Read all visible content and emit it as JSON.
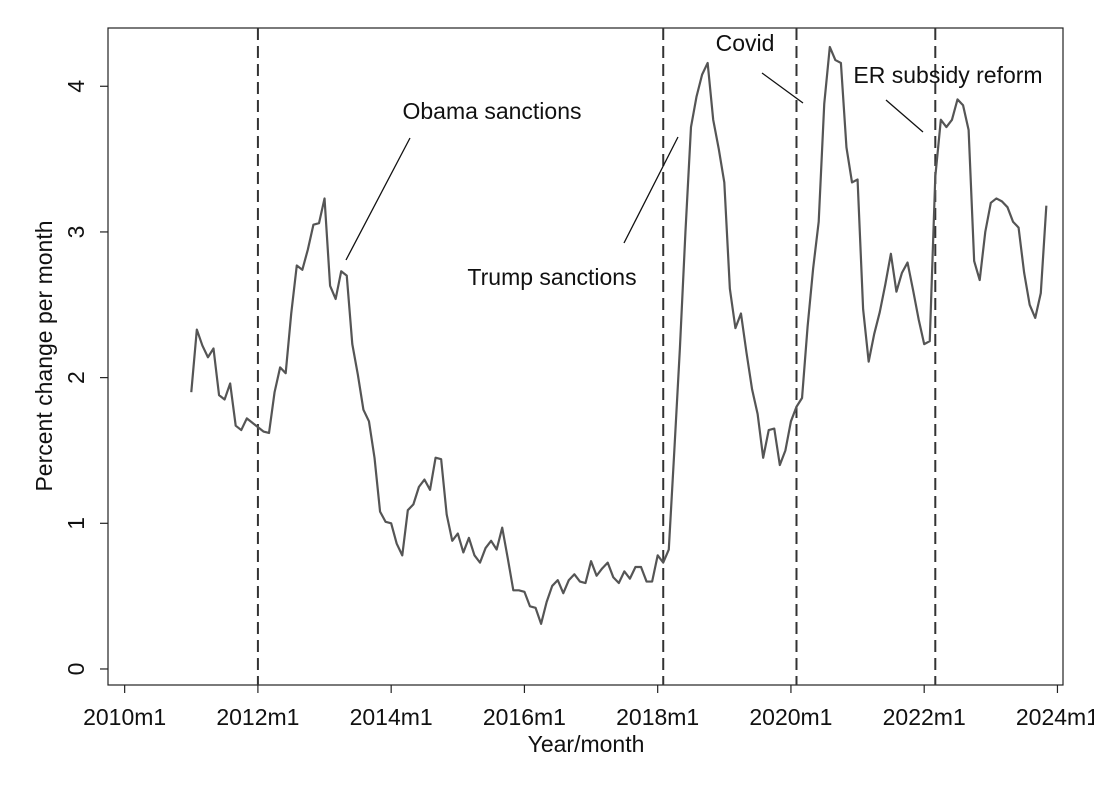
{
  "chart_data": {
    "type": "line",
    "xlabel": "Year/month",
    "ylabel": "Percent change per month",
    "x": [
      612,
      613,
      614,
      615,
      616,
      617,
      618,
      619,
      620,
      621,
      622,
      623,
      624,
      625,
      626,
      627,
      628,
      629,
      630,
      631,
      632,
      633,
      634,
      635,
      636,
      637,
      638,
      639,
      640,
      641,
      642,
      643,
      644,
      645,
      646,
      647,
      648,
      649,
      650,
      651,
      652,
      653,
      654,
      655,
      656,
      657,
      658,
      659,
      660,
      661,
      662,
      663,
      664,
      665,
      666,
      667,
      668,
      669,
      670,
      671,
      672,
      673,
      674,
      675,
      676,
      677,
      678,
      679,
      680,
      681,
      682,
      683,
      684,
      685,
      686,
      687,
      688,
      689,
      690,
      691,
      692,
      693,
      694,
      695,
      696,
      697,
      698,
      699,
      700,
      701,
      702,
      703,
      704,
      705,
      706,
      707,
      708,
      709,
      710,
      711,
      712,
      713,
      714,
      715,
      716,
      717,
      718,
      719,
      720,
      721,
      722,
      723,
      724,
      725,
      726,
      727,
      728,
      729,
      730,
      731,
      732,
      733,
      734,
      735,
      736,
      737,
      738,
      739,
      740,
      741,
      742,
      743,
      744,
      745,
      746,
      747,
      748,
      749,
      750,
      751,
      752,
      753,
      754,
      755,
      756,
      757,
      758,
      759,
      760,
      761,
      762,
      763,
      764,
      765,
      766
    ],
    "series": [
      {
        "color": "#555555",
        "values": [
          1.9,
          2.33,
          2.22,
          2.14,
          2.2,
          1.88,
          1.85,
          1.96,
          1.67,
          1.64,
          1.72,
          1.69,
          1.66,
          1.63,
          1.62,
          1.9,
          2.07,
          2.03,
          2.44,
          2.77,
          2.74,
          2.88,
          3.05,
          3.06,
          3.23,
          2.63,
          2.54,
          2.73,
          2.7,
          2.23,
          2.02,
          1.78,
          1.7,
          1.45,
          1.08,
          1.01,
          1.0,
          0.86,
          0.78,
          1.09,
          1.13,
          1.25,
          1.3,
          1.23,
          1.45,
          1.44,
          1.06,
          0.88,
          0.93,
          0.8,
          0.9,
          0.78,
          0.73,
          0.83,
          0.88,
          0.82,
          0.97,
          0.76,
          0.54,
          0.54,
          0.53,
          0.43,
          0.42,
          0.31,
          0.46,
          0.57,
          0.61,
          0.52,
          0.61,
          0.65,
          0.6,
          0.59,
          0.74,
          0.64,
          0.69,
          0.73,
          0.63,
          0.59,
          0.67,
          0.62,
          0.7,
          0.7,
          0.6,
          0.6,
          0.78,
          0.73,
          0.82,
          1.5,
          2.2,
          3.0,
          3.72,
          3.93,
          4.08,
          4.16,
          3.77,
          3.57,
          3.34,
          2.61,
          2.34,
          2.44,
          2.17,
          1.92,
          1.75,
          1.45,
          1.64,
          1.65,
          1.4,
          1.5,
          1.7,
          1.8,
          1.86,
          2.35,
          2.75,
          3.07,
          3.88,
          4.27,
          4.18,
          4.16,
          3.58,
          3.34,
          3.36,
          2.47,
          2.11,
          2.3,
          2.45,
          2.64,
          2.85,
          2.59,
          2.72,
          2.79,
          2.6,
          2.4,
          2.23,
          2.25,
          3.38,
          3.77,
          3.72,
          3.77,
          3.91,
          3.87,
          3.7,
          2.8,
          2.67,
          3.0,
          3.2,
          3.23,
          3.21,
          3.17,
          3.07,
          3.03,
          2.72,
          2.5,
          2.41,
          2.58,
          3.18
        ]
      }
    ],
    "xlim": [
      597,
      769
    ],
    "ylim": [
      -0.11,
      4.4
    ],
    "xticks": [
      {
        "value": 600,
        "label": "2010m1"
      },
      {
        "value": 624,
        "label": "2012m1"
      },
      {
        "value": 648,
        "label": "2014m1"
      },
      {
        "value": 672,
        "label": "2016m1"
      },
      {
        "value": 696,
        "label": "2018m1"
      },
      {
        "value": 720,
        "label": "2020m1"
      },
      {
        "value": 744,
        "label": "2022m1"
      },
      {
        "value": 768,
        "label": "2024m1"
      }
    ],
    "yticks": [
      0,
      1,
      2,
      3,
      4
    ],
    "vlines": [
      624,
      697,
      721,
      746
    ],
    "annotations": [
      "Obama sanctions",
      "Trump sanctions",
      "Covid",
      "ER subsidy reform"
    ]
  }
}
